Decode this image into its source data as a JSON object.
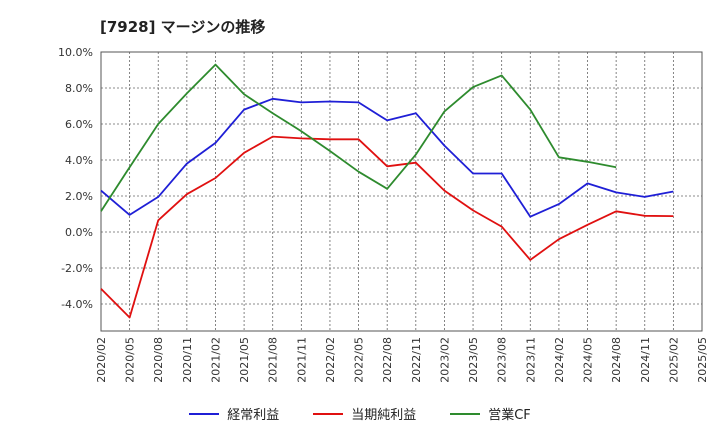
{
  "title": "[7928]  マージンの推移",
  "chart_data": {
    "type": "line",
    "x": [
      "2020/02",
      "2020/05",
      "2020/08",
      "2020/11",
      "2021/02",
      "2021/05",
      "2021/08",
      "2021/11",
      "2022/02",
      "2022/05",
      "2022/08",
      "2022/11",
      "2023/02",
      "2023/05",
      "2023/08",
      "2023/11",
      "2024/02",
      "2024/05",
      "2024/08",
      "2024/11",
      "2025/02",
      "2025/05"
    ],
    "ylim": [
      -5.5,
      10.0
    ],
    "yticks": [
      -4.0,
      -2.0,
      0.0,
      2.0,
      4.0,
      6.0,
      8.0,
      10.0
    ],
    "ytick_labels": [
      "-4.0%",
      "-2.0%",
      "0.0%",
      "2.0%",
      "4.0%",
      "6.0%",
      "8.0%",
      "10.0%"
    ],
    "grid": true,
    "legend_position": "bottom",
    "series": [
      {
        "name": "経常利益",
        "color": "#1f1fd6",
        "values": [
          2.3,
          0.95,
          1.95,
          3.8,
          4.95,
          6.8,
          7.4,
          7.2,
          7.25,
          7.2,
          6.2,
          6.6,
          4.8,
          3.25,
          3.25,
          0.85,
          1.55,
          2.7,
          2.2,
          1.95,
          2.25,
          null
        ]
      },
      {
        "name": "当期純利益",
        "color": "#e01010",
        "values": [
          -3.15,
          -4.75,
          0.65,
          2.1,
          3.0,
          4.4,
          5.3,
          5.2,
          5.15,
          5.15,
          3.65,
          3.85,
          2.3,
          1.2,
          0.3,
          -1.55,
          -0.4,
          0.4,
          1.15,
          0.9,
          0.88,
          null
        ]
      },
      {
        "name": "営業CF",
        "color": "#2e8b2e",
        "values": [
          1.15,
          3.6,
          6.0,
          7.7,
          9.3,
          7.65,
          6.6,
          5.6,
          4.5,
          3.35,
          2.4,
          4.3,
          6.7,
          8.05,
          8.7,
          6.8,
          4.15,
          3.9,
          3.6,
          null,
          null,
          null
        ]
      }
    ]
  }
}
